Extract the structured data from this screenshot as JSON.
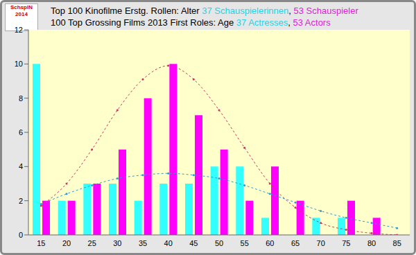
{
  "chart_data": {
    "type": "bar",
    "logo": "SchspIN 2014",
    "title": [
      {
        "text": "Top 100 Kinofilme Erstg. Rollen: Alter ",
        "color": "#000000"
      },
      {
        "text": "37 Schauspielerinnen",
        "color": "#22d4e6"
      },
      {
        "text": ", ",
        "color": "#000000"
      },
      {
        "text": "53 Schauspieler",
        "color": "#e020d8"
      }
    ],
    "subtitle": [
      {
        "text": "100 Top Grossing Films 2013 First Roles: Age ",
        "color": "#000000"
      },
      {
        "text": "37 Actresses",
        "color": "#22d4e6"
      },
      {
        "text": ", ",
        "color": "#000000"
      },
      {
        "text": "53 Actors",
        "color": "#e020d8"
      }
    ],
    "categories": [
      15,
      20,
      25,
      30,
      35,
      40,
      45,
      50,
      55,
      60,
      65,
      70,
      75,
      80,
      85
    ],
    "series": [
      {
        "name": "37 Schauspielerinnen",
        "color": "#33ffff",
        "values": [
          10,
          2,
          3,
          3,
          2,
          3,
          3,
          4,
          4,
          1,
          0,
          1,
          1,
          0,
          0
        ],
        "trend": [
          1.8,
          2.4,
          2.9,
          3.3,
          3.5,
          3.6,
          3.5,
          3.3,
          2.9,
          2.4,
          1.9,
          1.4,
          1.0,
          0.7,
          0.4
        ]
      },
      {
        "name": "53 Schauspieler",
        "color": "#ff00ff",
        "values": [
          2,
          2,
          3,
          5,
          8,
          10,
          7,
          5,
          2,
          4,
          2,
          0,
          2,
          1,
          0
        ],
        "trend": [
          1.7,
          3.0,
          5.0,
          7.3,
          9.1,
          9.9,
          9.1,
          7.3,
          5.1,
          3.0,
          1.6,
          0.7,
          0.3,
          0.1,
          0.0
        ]
      }
    ],
    "ylim": [
      0,
      12
    ],
    "yticks": [
      0,
      2,
      4,
      6,
      8,
      10,
      12
    ],
    "grid": false
  }
}
